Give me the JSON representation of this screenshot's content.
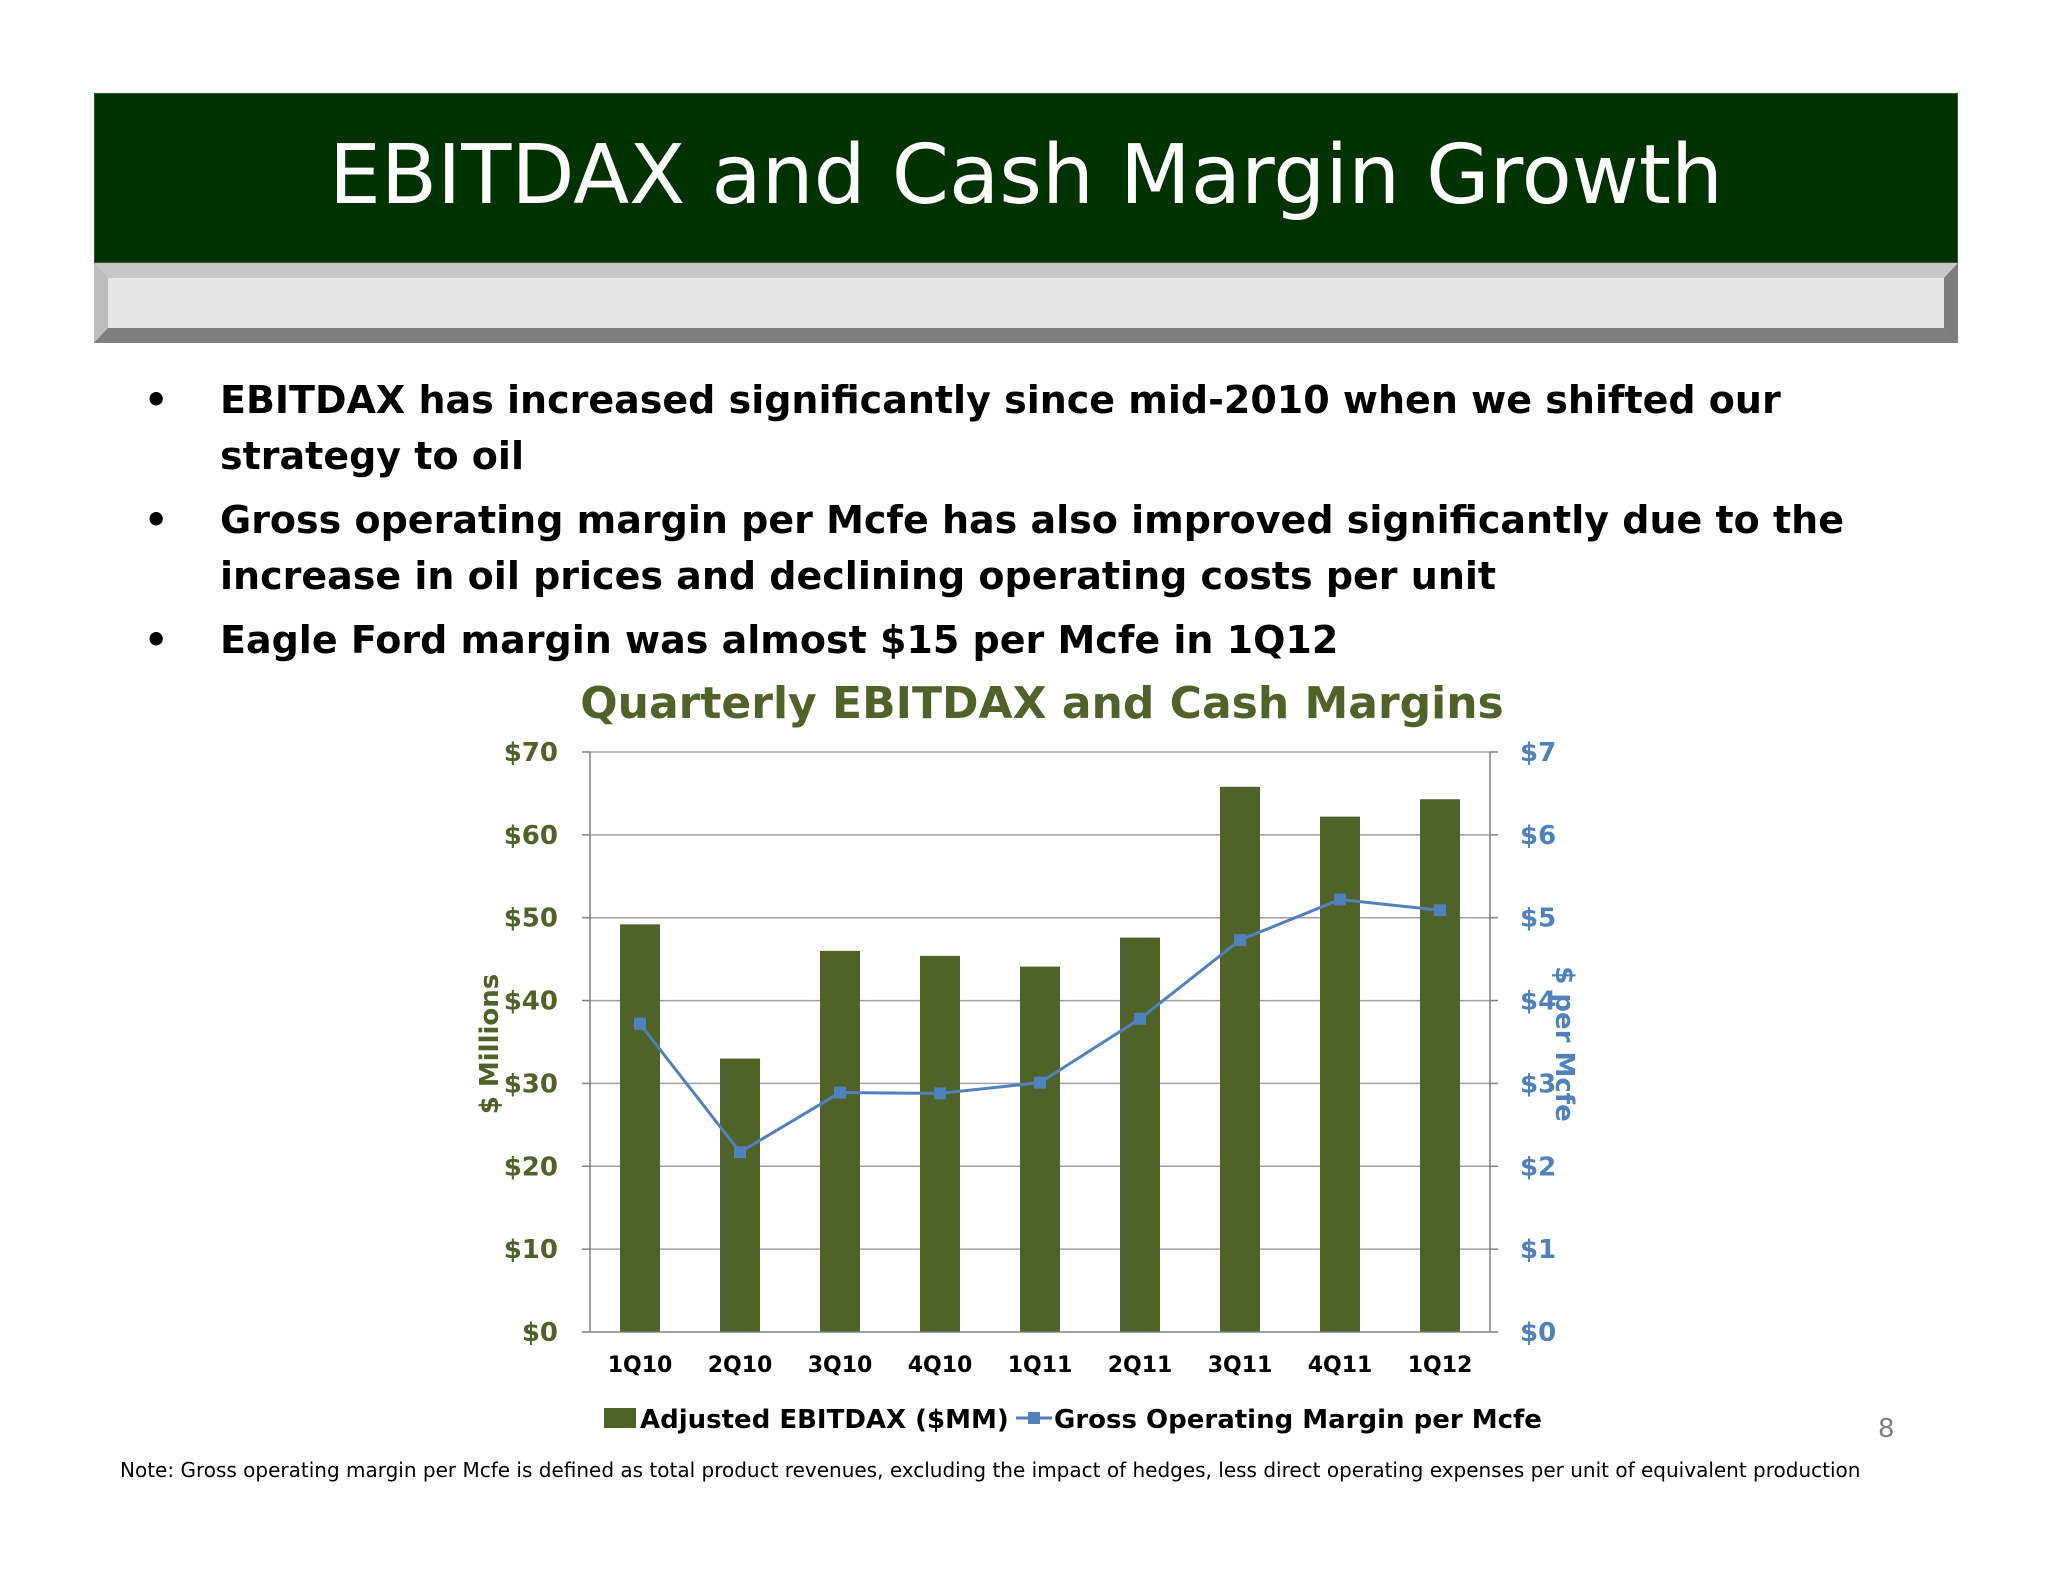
{
  "slide": {
    "title": "EBITDAX and Cash Margin Growth",
    "bullets": [
      "EBITDAX has increased significantly since mid-2010 when we shifted our strategy to oil",
      "Gross operating margin per Mcfe has also improved significantly due to the increase in oil prices and declining operating costs per unit",
      "Eagle Ford margin was almost $15 per Mcfe in 1Q12"
    ],
    "bullet_marker": "•",
    "footnote": "Note: Gross operating margin per Mcfe is defined as total product revenues, excluding the impact of hedges, less direct operating expenses per unit of equivalent production",
    "page_number": "8"
  },
  "colors": {
    "title_bar": "#003200",
    "bar": "#4f6228",
    "line": "#4f81bd",
    "left_axis_text": "#4f6228",
    "right_axis_text": "#4f81bd",
    "grid": "#a0a0a0"
  },
  "chart_data": {
    "type": "bar",
    "title": "Quarterly EBITDAX and Cash Margins",
    "categories": [
      "1Q10",
      "2Q10",
      "3Q10",
      "4Q10",
      "1Q11",
      "2Q11",
      "3Q11",
      "4Q11",
      "1Q12"
    ],
    "series": [
      {
        "name": "Adjusted EBITDAX ($MM)",
        "type": "bar",
        "axis": "left",
        "values": [
          49.2,
          33.0,
          46.0,
          45.4,
          44.1,
          47.6,
          65.8,
          62.2,
          64.3
        ]
      },
      {
        "name": "Gross Operating Margin per Mcfe",
        "type": "line",
        "axis": "right",
        "marker": "square",
        "values": [
          3.72,
          2.17,
          2.89,
          2.88,
          3.01,
          3.78,
          4.73,
          5.22,
          5.09
        ]
      }
    ],
    "ylabel": "$ Millions",
    "y2label": "$ per Mcfe",
    "ylim": [
      0,
      70
    ],
    "y2lim": [
      0,
      7
    ],
    "yticks": [
      "$0",
      "$10",
      "$20",
      "$30",
      "$40",
      "$50",
      "$60",
      "$70"
    ],
    "y2ticks": [
      "$0",
      "$1",
      "$2",
      "$3",
      "$4",
      "$5",
      "$6",
      "$7"
    ],
    "grid": true,
    "legend": "bottom"
  }
}
